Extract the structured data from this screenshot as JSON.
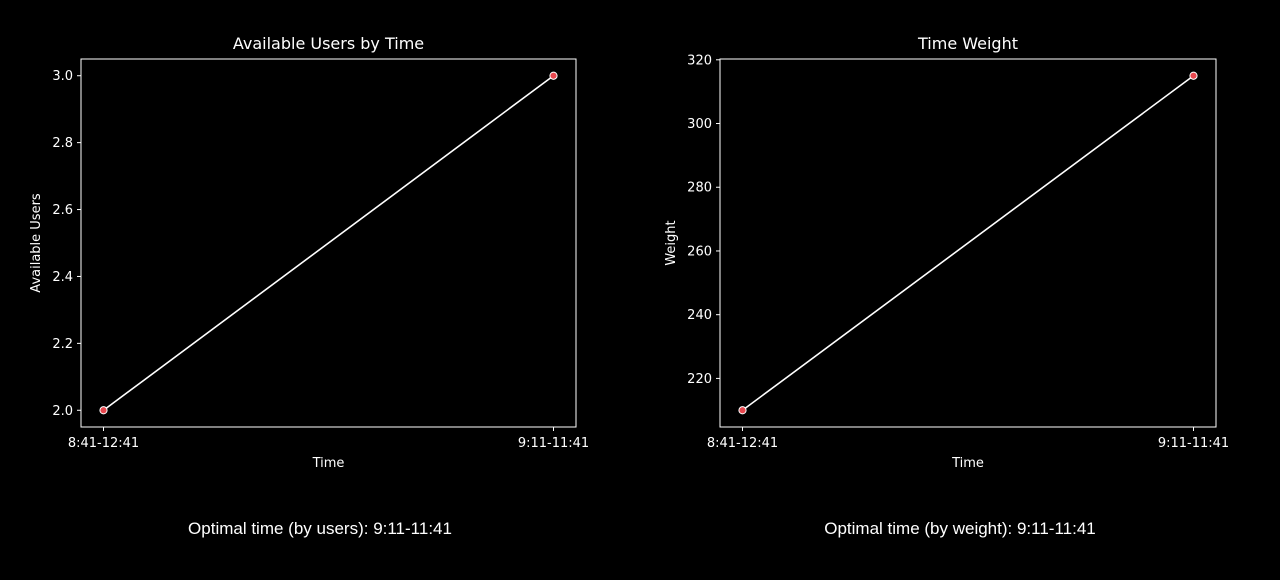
{
  "chart_data": [
    {
      "type": "line",
      "title": "Available Users by Time",
      "xlabel": "Time",
      "ylabel": "Available Users",
      "categories": [
        "8:41-12:41",
        "9:11-11:41"
      ],
      "values": [
        2,
        3
      ],
      "ylim": [
        1.95,
        3.05
      ],
      "yticks": [
        "2.0",
        "2.2",
        "2.4",
        "2.6",
        "2.8",
        "3.0"
      ],
      "ytick_values": [
        2.0,
        2.2,
        2.4,
        2.6,
        2.8,
        3.0
      ],
      "grid": false,
      "line_color": "#ffffff",
      "marker_color": "#e8474e"
    },
    {
      "type": "line",
      "title": "Time Weight",
      "xlabel": "Time",
      "ylabel": "Weight",
      "categories": [
        "8:41-12:41",
        "9:11-11:41"
      ],
      "values": [
        210,
        315
      ],
      "ylim": [
        204.75,
        320.25
      ],
      "yticks": [
        "220",
        "240",
        "260",
        "280",
        "300",
        "320"
      ],
      "ytick_values": [
        220,
        240,
        260,
        280,
        300,
        320
      ],
      "grid": false,
      "line_color": "#ffffff",
      "marker_color": "#e8474e"
    }
  ],
  "captions": {
    "users": "Optimal time (by users): 9:11-11:41",
    "weight": "Optimal time (by weight): 9:11-11:41"
  },
  "colors": {
    "background": "#000000",
    "foreground": "#ffffff",
    "marker": "#e8474e"
  }
}
